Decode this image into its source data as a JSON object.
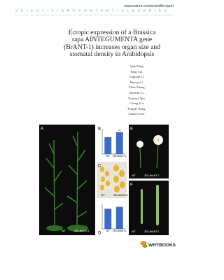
{
  "header": {
    "url": "www.nature.com/scientificreport",
    "series": "SCIENTIFICREPORTARTICLESERIES"
  },
  "title_lines": [
    "Ectopic expression of a Brassica",
    "rapa AINTEGUMENTA gene",
    "(BrANT-1) increases organ size and",
    "stomatal density in Arabidopsis"
  ],
  "authors": [
    "Qian Ding",
    "Bing Cui",
    "Jingjuan Li",
    "Huayin Li",
    "Yihui Zhang",
    "Xiaohui Lv",
    "Nianwei Qiu",
    "Lifeng Liu",
    "Fengde Wang",
    "Jianwei Gao"
  ],
  "figure": {
    "panels": [
      "A",
      "B",
      "C",
      "D",
      "E",
      "F"
    ],
    "genotypes": [
      "WT",
      "35S-BrANT-1"
    ],
    "chart_b": {
      "values": [
        2.0,
        2.6
      ],
      "ylim": [
        0,
        3
      ],
      "color": "#3a6cc6",
      "significance": "**"
    },
    "chart_d": {
      "values": [
        1.6,
        1.75
      ],
      "ylim": [
        0,
        2
      ],
      "color": "#3a6cc6"
    }
  },
  "publisher": "WHYBOOKS"
}
